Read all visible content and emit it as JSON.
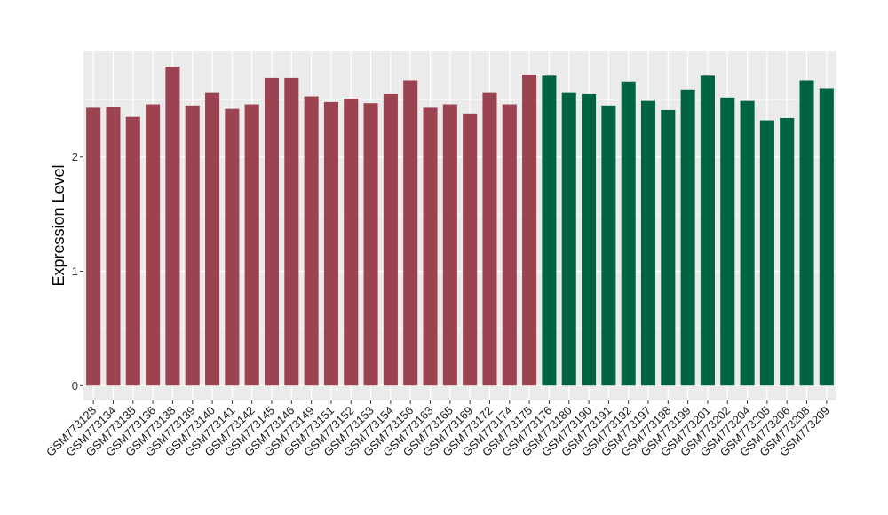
{
  "chart_data": {
    "type": "bar",
    "title": "",
    "xlabel": "",
    "ylabel": "Expression Level",
    "ylim": [
      -0.13,
      2.93
    ],
    "yticks": [
      0,
      1,
      2
    ],
    "grid": true,
    "colors": {
      "group1": "#9B4350",
      "group2": "#006444",
      "panel": "#EBEBEB",
      "grid": "#FFFFFF"
    },
    "categories": [
      "GSM773128",
      "GSM773134",
      "GSM773135",
      "GSM773136",
      "GSM773138",
      "GSM773139",
      "GSM773140",
      "GSM773141",
      "GSM773142",
      "GSM773145",
      "GSM773146",
      "GSM773149",
      "GSM773151",
      "GSM773152",
      "GSM773153",
      "GSM773154",
      "GSM773156",
      "GSM773163",
      "GSM773165",
      "GSM773169",
      "GSM773172",
      "GSM773174",
      "GSM773175",
      "GSM773176",
      "GSM773180",
      "GSM773190",
      "GSM773191",
      "GSM773192",
      "GSM773197",
      "GSM773198",
      "GSM773199",
      "GSM773201",
      "GSM773202",
      "GSM773204",
      "GSM773205",
      "GSM773206",
      "GSM773208",
      "GSM773209"
    ],
    "values": [
      2.43,
      2.44,
      2.35,
      2.46,
      2.79,
      2.45,
      2.56,
      2.42,
      2.46,
      2.69,
      2.69,
      2.53,
      2.48,
      2.51,
      2.47,
      2.55,
      2.67,
      2.43,
      2.46,
      2.38,
      2.56,
      2.46,
      2.72,
      2.71,
      2.56,
      2.55,
      2.45,
      2.66,
      2.49,
      2.41,
      2.59,
      2.71,
      2.52,
      2.49,
      2.32,
      2.34,
      2.67,
      2.6
    ],
    "groups": [
      1,
      1,
      1,
      1,
      1,
      1,
      1,
      1,
      1,
      1,
      1,
      1,
      1,
      1,
      1,
      1,
      1,
      1,
      1,
      1,
      1,
      1,
      1,
      2,
      2,
      2,
      2,
      2,
      2,
      2,
      2,
      2,
      2,
      2,
      2,
      2,
      2,
      2
    ]
  }
}
